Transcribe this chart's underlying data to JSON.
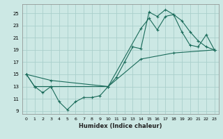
{
  "xlabel": "Humidex (Indice chaleur)",
  "xlim": [
    -0.5,
    23.5
  ],
  "ylim": [
    8.5,
    26.5
  ],
  "yticks": [
    9,
    11,
    13,
    15,
    17,
    19,
    21,
    23,
    25
  ],
  "xticks": [
    0,
    1,
    2,
    3,
    4,
    5,
    6,
    7,
    8,
    9,
    10,
    11,
    12,
    13,
    14,
    15,
    16,
    17,
    18,
    19,
    20,
    21,
    22,
    23
  ],
  "bg_color": "#cce8e4",
  "grid_color": "#aacfcb",
  "line_color": "#1a6b5a",
  "line1_x": [
    0,
    1,
    2,
    3,
    4,
    5,
    6,
    7,
    8,
    9,
    10,
    11,
    12,
    13,
    14,
    15,
    16,
    17,
    18,
    19,
    20,
    21,
    22,
    23
  ],
  "line1_y": [
    15,
    13,
    12,
    13,
    10.5,
    9.2,
    10.5,
    11.2,
    11.2,
    11.5,
    13,
    14.5,
    17,
    19.5,
    19.2,
    25.2,
    24.5,
    25.6,
    24.8,
    23.8,
    22,
    20.5,
    19.5,
    19
  ],
  "line2_x": [
    0,
    3,
    10,
    14,
    15,
    16,
    17,
    18,
    19,
    20,
    21,
    22,
    23
  ],
  "line2_y": [
    15,
    14,
    13,
    22.5,
    24.2,
    22.3,
    24.5,
    24.8,
    22,
    19.8,
    19.5,
    21.5,
    19
  ],
  "line3_x": [
    0,
    1,
    3,
    10,
    14,
    18,
    23
  ],
  "line3_y": [
    15,
    13,
    13,
    13,
    17.5,
    18.5,
    19
  ]
}
